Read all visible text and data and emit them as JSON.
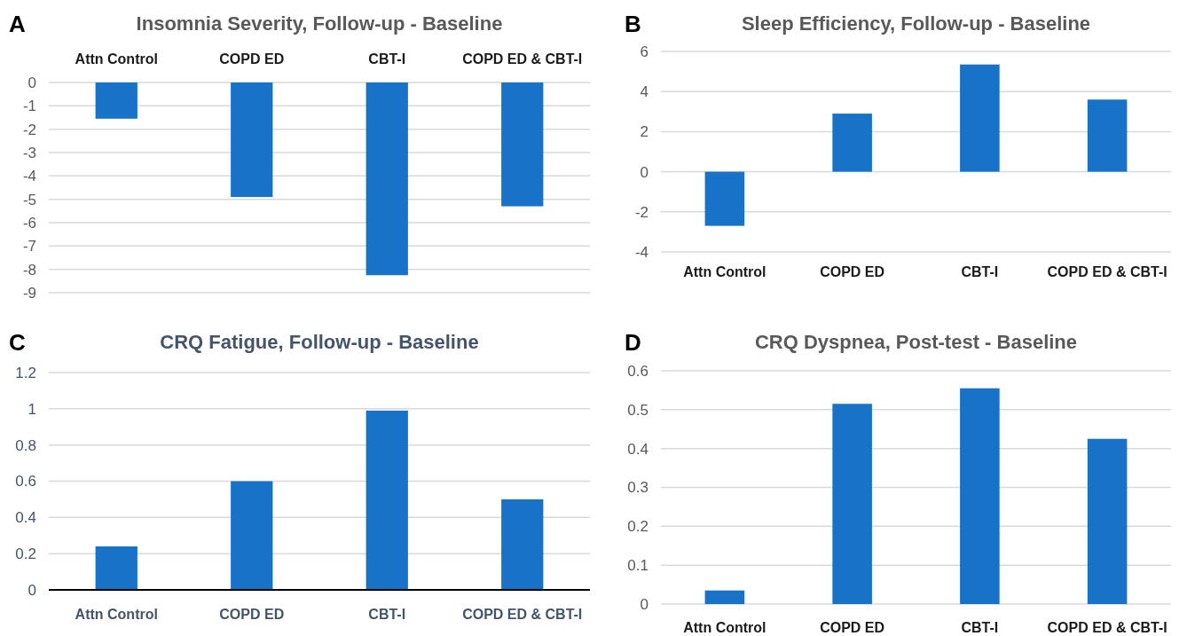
{
  "chart_data": [
    {
      "type": "bar",
      "title": "Insomnia Severity, Follow-up - Baseline",
      "annotations": [
        "A"
      ],
      "categories": [
        "Attn Control",
        "COPD ED",
        "CBT-I",
        "COPD ED & CBT-I"
      ],
      "values": [
        -1.55,
        -4.9,
        -8.25,
        -5.3
      ],
      "color": "#1873c8",
      "ylim": [
        -9,
        0
      ],
      "yticks": [
        -9,
        -8,
        -7,
        -6,
        -5,
        -4,
        -3,
        -2,
        -1,
        0
      ],
      "grid": "y"
    },
    {
      "type": "bar",
      "title": "Sleep Efficiency, Follow-up - Baseline",
      "annotations": [
        "B"
      ],
      "categories": [
        "Attn Control",
        "COPD ED",
        "CBT-I",
        "COPD ED & CBT-I"
      ],
      "values": [
        -2.7,
        2.9,
        5.35,
        3.6
      ],
      "color": "#1873c8",
      "ylim": [
        -4,
        6
      ],
      "yticks": [
        -4,
        -2,
        0,
        2,
        4,
        6
      ],
      "grid": "y"
    },
    {
      "type": "bar",
      "title": "CRQ Fatigue, Follow-up - Baseline",
      "annotations": [
        "C"
      ],
      "categories": [
        "Attn Control",
        "COPD ED",
        "CBT-I",
        "COPD ED & CBT-I"
      ],
      "values": [
        0.24,
        0.6,
        0.99,
        0.5
      ],
      "color": "#1873c8",
      "ylim": [
        0,
        1.2
      ],
      "yticks": [
        0,
        0.2,
        0.4,
        0.6,
        0.8,
        1,
        1.2
      ],
      "grid": "y"
    },
    {
      "type": "bar",
      "title": "CRQ Dyspnea, Post-test - Baseline",
      "annotations": [
        "D"
      ],
      "categories": [
        "Attn Control",
        "COPD ED",
        "CBT-I",
        "COPD ED & CBT-I"
      ],
      "values": [
        0.035,
        0.515,
        0.555,
        0.425
      ],
      "color": "#1873c8",
      "ylim": [
        0,
        0.6
      ],
      "yticks": [
        0,
        0.1,
        0.2,
        0.3,
        0.4,
        0.5,
        0.6
      ],
      "grid": "y"
    }
  ]
}
